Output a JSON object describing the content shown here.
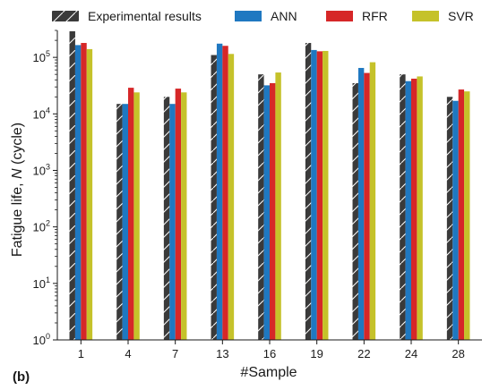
{
  "chart_data": {
    "type": "bar",
    "panel_label": "(b)",
    "xlabel": "#Sample",
    "ylabel": "Fatigue life, N (cycle)",
    "ylabel_parts": {
      "before": "Fatigue life, ",
      "italic": "N",
      "after": " (cycle)"
    },
    "yscale": "log",
    "ylim": [
      1,
      300000
    ],
    "yticks": [
      {
        "value": 1,
        "base": "10",
        "exp": "0"
      },
      {
        "value": 10,
        "base": "10",
        "exp": "1"
      },
      {
        "value": 100,
        "base": "10",
        "exp": "2"
      },
      {
        "value": 1000,
        "base": "10",
        "exp": "3"
      },
      {
        "value": 10000,
        "base": "10",
        "exp": "4"
      },
      {
        "value": 100000,
        "base": "10",
        "exp": "5"
      }
    ],
    "categories": [
      "1",
      "4",
      "7",
      "13",
      "16",
      "19",
      "22",
      "24",
      "28"
    ],
    "series": [
      {
        "name": "Experimental results",
        "color": "#3a3a3a",
        "hatch": true,
        "values": [
          290000,
          15000,
          20000,
          110000,
          50000,
          180000,
          35000,
          50000,
          20000
        ]
      },
      {
        "name": "ANN",
        "color": "#1f78c1",
        "values": [
          165000,
          15000,
          15000,
          175000,
          32000,
          135000,
          65000,
          38000,
          17000
        ]
      },
      {
        "name": "RFR",
        "color": "#d62728",
        "values": [
          180000,
          29000,
          28000,
          160000,
          35000,
          128000,
          53000,
          42000,
          27000
        ]
      },
      {
        "name": "SVR",
        "color": "#c5c22a",
        "values": [
          140000,
          24000,
          24000,
          115000,
          54000,
          130000,
          82000,
          46000,
          25000
        ]
      }
    ],
    "grid": false,
    "legend_position": "top"
  }
}
